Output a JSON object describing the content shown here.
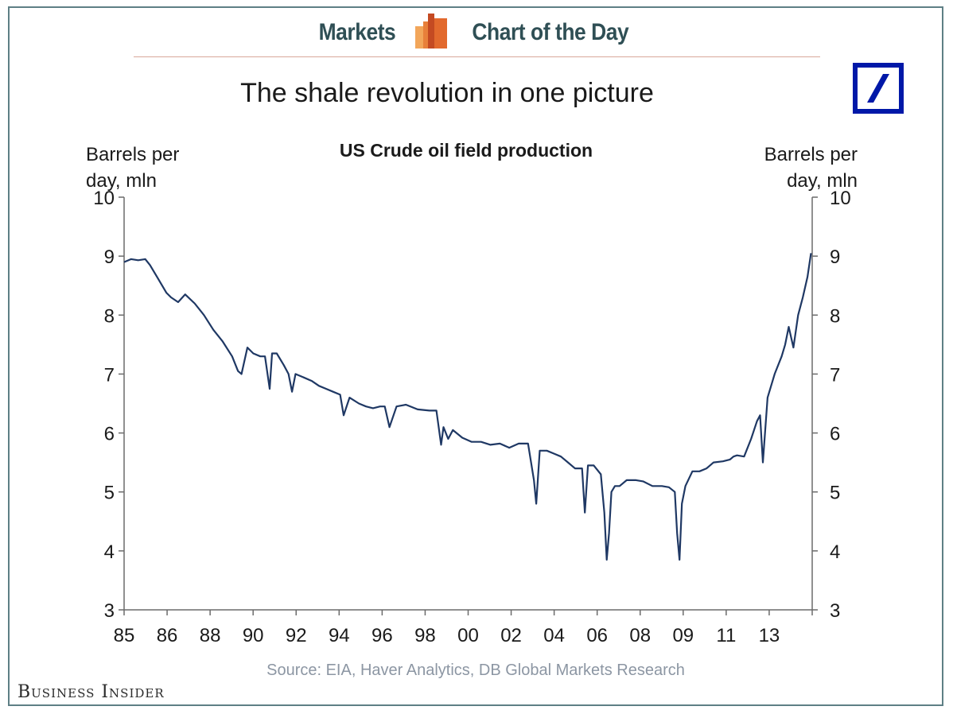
{
  "header": {
    "left_word": "Markets",
    "right_word": "Chart of the Day",
    "icon": "bar-chart-icon",
    "accent_colors": [
      "#e8954a",
      "#d9572c"
    ]
  },
  "logo": {
    "name": "deutsche-bank-logo",
    "color": "#0018a8"
  },
  "brand": {
    "text": "Business Insider"
  },
  "chart_data": {
    "type": "line",
    "title": "The shale revolution in one picture",
    "subtitle": "US Crude oil field production",
    "ylabel_left": "Barrels per day, mln",
    "ylabel_right": "Barrels per day, mln",
    "source": "Source: EIA, Haver Analytics, DB Global Markets Research",
    "ylim": [
      3,
      10
    ],
    "yticks": [
      "3",
      "4",
      "5",
      "6",
      "7",
      "8",
      "9",
      "10"
    ],
    "xlim": [
      1985,
      2014.3
    ],
    "xtick_labels": [
      "85",
      "86",
      "88",
      "90",
      "92",
      "94",
      "96",
      "98",
      "00",
      "02",
      "04",
      "06",
      "08",
      "09",
      "11",
      "13"
    ],
    "grid": false,
    "line_color": "#1f3864",
    "series": [
      {
        "name": "US Crude oil field production",
        "x": [
          1985.0,
          1985.3,
          1985.6,
          1985.9,
          1986.0,
          1986.1,
          1986.4,
          1986.8,
          1987.0,
          1987.3,
          1987.6,
          1988.0,
          1988.4,
          1988.8,
          1989.2,
          1989.6,
          1989.85,
          1990.0,
          1990.25,
          1990.5,
          1990.8,
          1991.0,
          1991.2,
          1991.3,
          1991.5,
          1991.8,
          1992.0,
          1992.15,
          1992.3,
          1992.6,
          1993.0,
          1993.3,
          1993.6,
          1993.9,
          1994.2,
          1994.35,
          1994.6,
          1995.0,
          1995.3,
          1995.6,
          1995.9,
          1996.1,
          1996.3,
          1996.6,
          1997.0,
          1997.5,
          1998.0,
          1998.3,
          1998.5,
          1998.6,
          1998.8,
          1999.0,
          1999.4,
          1999.8,
          2000.2,
          2000.6,
          2001.0,
          2001.4,
          2001.8,
          2002.2,
          2002.45,
          2002.55,
          2002.7,
          2003.0,
          2003.3,
          2003.6,
          2003.9,
          2004.2,
          2004.5,
          2004.62,
          2004.75,
          2005.0,
          2005.3,
          2005.45,
          2005.55,
          2005.65,
          2005.75,
          2005.9,
          2006.1,
          2006.4,
          2006.8,
          2007.1,
          2007.5,
          2007.9,
          2008.2,
          2008.45,
          2008.55,
          2008.65,
          2008.75,
          2008.9,
          2009.2,
          2009.5,
          2009.8,
          2010.1,
          2010.5,
          2010.8,
          2010.95,
          2011.1,
          2011.4,
          2011.7,
          2011.95,
          2012.08,
          2012.2,
          2012.4,
          2012.7,
          2013.0,
          2013.15,
          2013.3,
          2013.5,
          2013.7,
          2013.9,
          2014.1,
          2014.25
        ],
        "values": [
          8.9,
          8.95,
          8.93,
          8.95,
          8.9,
          8.85,
          8.65,
          8.38,
          8.3,
          8.22,
          8.35,
          8.2,
          8.0,
          7.75,
          7.55,
          7.3,
          7.05,
          7.0,
          7.45,
          7.35,
          7.3,
          7.3,
          6.75,
          7.35,
          7.35,
          7.15,
          7.0,
          6.7,
          7.0,
          6.95,
          6.88,
          6.8,
          6.75,
          6.7,
          6.65,
          6.3,
          6.6,
          6.5,
          6.45,
          6.42,
          6.45,
          6.45,
          6.1,
          6.45,
          6.48,
          6.4,
          6.38,
          6.38,
          5.8,
          6.1,
          5.9,
          6.05,
          5.92,
          5.85,
          5.85,
          5.8,
          5.82,
          5.75,
          5.82,
          5.82,
          5.2,
          4.8,
          5.7,
          5.7,
          5.65,
          5.6,
          5.5,
          5.4,
          5.4,
          4.65,
          5.45,
          5.45,
          5.3,
          4.65,
          3.85,
          4.3,
          5.0,
          5.1,
          5.1,
          5.2,
          5.2,
          5.18,
          5.1,
          5.1,
          5.08,
          5.0,
          4.3,
          3.85,
          4.8,
          5.1,
          5.35,
          5.35,
          5.4,
          5.5,
          5.52,
          5.55,
          5.6,
          5.62,
          5.6,
          5.9,
          6.2,
          6.3,
          5.5,
          6.6,
          7.0,
          7.3,
          7.5,
          7.8,
          7.45,
          8.0,
          8.3,
          8.65,
          9.05
        ]
      }
    ]
  }
}
